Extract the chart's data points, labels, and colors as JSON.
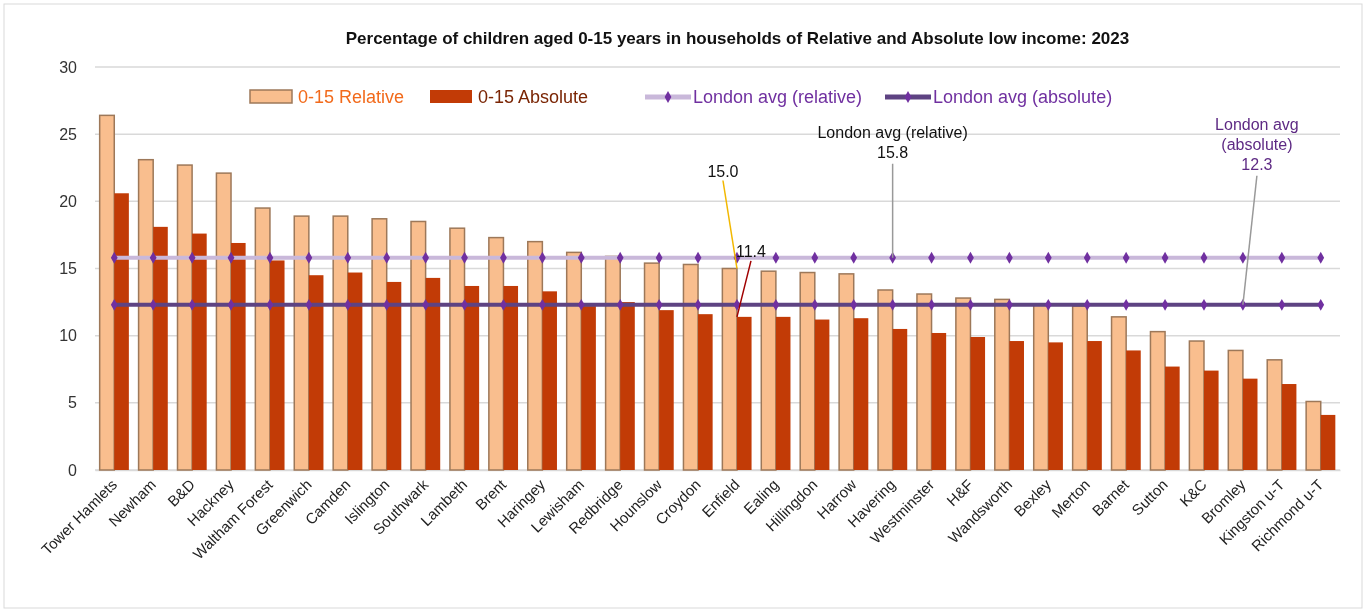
{
  "chart_data": {
    "type": "bar",
    "title": "Percentage of children  aged 0-15 years in households of Relative and Absolute low income: 2023",
    "categories": [
      "Tower Hamlets",
      "Newham",
      "B&D",
      "Hackney",
      "Waltham Forest",
      "Greenwich",
      "Camden",
      "Islington",
      "Southwark",
      "Lambeth",
      "Brent",
      "Haringey",
      "Lewisham",
      "Redbridge",
      "Hounslow",
      "Croydon",
      "Enfield",
      "Ealing",
      "Hillingdon",
      "Harrow",
      "Havering",
      "Westminster",
      "H&F",
      "Wandsworth",
      "Bexley",
      "Merton",
      "Barnet",
      "Sutton",
      "K&C",
      "Bromley",
      "Kingston u-T",
      "Richmond u-T"
    ],
    "series": [
      {
        "name": "0-15 Relative",
        "color": "#f9be8e",
        "values": [
          26.4,
          23.1,
          22.7,
          22.1,
          19.5,
          18.9,
          18.9,
          18.7,
          18.5,
          18.0,
          17.3,
          17.0,
          16.2,
          15.9,
          15.4,
          15.3,
          15.0,
          14.8,
          14.7,
          14.6,
          13.4,
          13.1,
          12.8,
          12.7,
          12.3,
          12.2,
          11.4,
          10.3,
          9.6,
          8.9,
          8.2,
          5.1
        ]
      },
      {
        "name": "0-15 Absolute",
        "color": "#c23b06",
        "values": [
          20.6,
          18.1,
          17.6,
          16.9,
          15.6,
          14.5,
          14.7,
          14.0,
          14.3,
          13.7,
          13.7,
          13.3,
          12.2,
          12.5,
          11.9,
          11.6,
          11.4,
          11.4,
          11.2,
          11.3,
          10.5,
          10.2,
          9.9,
          9.6,
          9.5,
          9.6,
          8.9,
          7.7,
          7.4,
          6.8,
          6.4,
          4.1
        ]
      },
      {
        "name": "London avg (relative)",
        "type": "line",
        "color": "#c9b8da",
        "marker": "diamond",
        "values": [
          15.8,
          15.8,
          15.8,
          15.8,
          15.8,
          15.8,
          15.8,
          15.8,
          15.8,
          15.8,
          15.8,
          15.8,
          15.8,
          15.8,
          15.8,
          15.8,
          15.8,
          15.8,
          15.8,
          15.8,
          15.8,
          15.8,
          15.8,
          15.8,
          15.8,
          15.8,
          15.8,
          15.8,
          15.8,
          15.8,
          15.8,
          15.8
        ]
      },
      {
        "name": "London avg (absolute)",
        "type": "line",
        "color": "#5e4382",
        "marker": "diamond",
        "values": [
          12.3,
          12.3,
          12.3,
          12.3,
          12.3,
          12.3,
          12.3,
          12.3,
          12.3,
          12.3,
          12.3,
          12.3,
          12.3,
          12.3,
          12.3,
          12.3,
          12.3,
          12.3,
          12.3,
          12.3,
          12.3,
          12.3,
          12.3,
          12.3,
          12.3,
          12.3,
          12.3,
          12.3,
          12.3,
          12.3,
          12.3,
          12.3
        ]
      }
    ],
    "annotations": [
      {
        "text": "15.0",
        "x": "Enfield",
        "y": 15.0
      },
      {
        "text": "11.4",
        "x": "Enfield",
        "y": 11.4
      },
      {
        "text": "London avg (relative)\n15.8",
        "x": "Havering",
        "y": 15.8
      },
      {
        "text": "London avg\n(absolute)\n12.3",
        "x": "Bromley",
        "y": 12.3
      }
    ],
    "ylim": [
      0,
      30
    ],
    "yticks": [
      0,
      5,
      10,
      15,
      20,
      25,
      30
    ],
    "grid": "y",
    "legend": "top"
  }
}
